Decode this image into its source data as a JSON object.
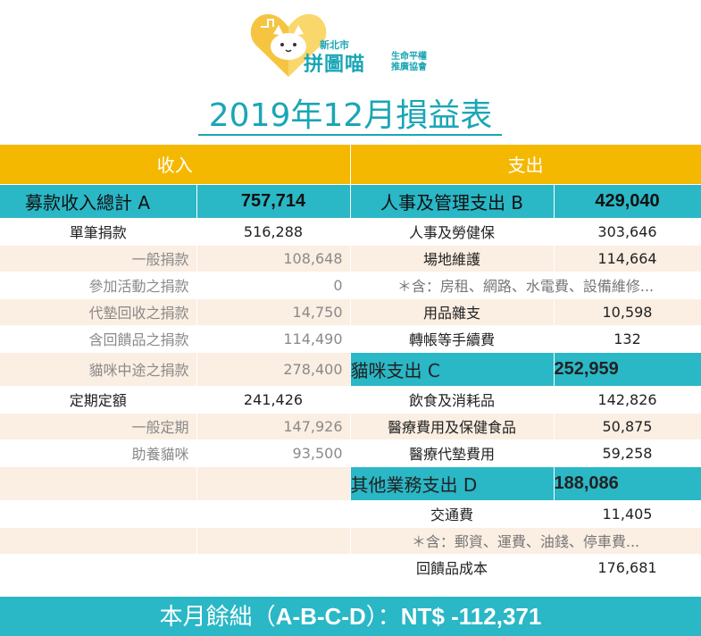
{
  "logo": {
    "city": "新北市",
    "name": "拼圖喵",
    "sub_line1": "生命平權",
    "sub_line2": "推廣協會"
  },
  "title": "2019年12月損益表",
  "header": {
    "income": "收入",
    "expense": "支出"
  },
  "rows": [
    {
      "kind": "cat",
      "l": "募款收入總計 A",
      "lv": "757,714",
      "r": "人事及管理支出 B",
      "rv": "429,040"
    },
    {
      "kind": "w",
      "ls": "main",
      "l": "單筆捐款",
      "lv": "516,288",
      "r": "人事及勞健保",
      "rv": "303,646"
    },
    {
      "kind": "b",
      "ls": "sub",
      "l": "一般捐款",
      "lv": "108,648",
      "r": "場地維護",
      "rv": "114,664"
    },
    {
      "kind": "w",
      "ls": "sub",
      "l": "參加活動之捐款",
      "lv": "0",
      "note": "＊含：房租、網路、水電費、設備維修..."
    },
    {
      "kind": "b",
      "ls": "sub",
      "l": "代墊回收之捐款",
      "lv": "14,750",
      "r": "用品雜支",
      "rv": "10,598"
    },
    {
      "kind": "w",
      "ls": "sub",
      "l": "含回饋品之捐款",
      "lv": "114,490",
      "r": "轉帳等手續費",
      "rv": "132"
    },
    {
      "kind": "b-cat",
      "ls": "sub",
      "l": "貓咪中途之捐款",
      "lv": "278,400",
      "r": "貓咪支出 C",
      "rv": "252,959"
    },
    {
      "kind": "w",
      "ls": "main",
      "l": "定期定額",
      "lv": "241,426",
      "r": "飲食及消耗品",
      "rv": "142,826"
    },
    {
      "kind": "b",
      "ls": "sub",
      "l": "一般定期",
      "lv": "147,926",
      "r": "醫療費用及保健食品",
      "rv": "50,875"
    },
    {
      "kind": "w",
      "ls": "sub",
      "l": "助養貓咪",
      "lv": "93,500",
      "r": "醫療代墊費用",
      "rv": "59,258"
    },
    {
      "kind": "b-cat",
      "ls": "sub",
      "l": "",
      "lv": "",
      "r": "其他業務支出 D",
      "rv": "188,086"
    },
    {
      "kind": "w",
      "ls": "sub",
      "l": "",
      "lv": "",
      "r": "交通費",
      "rv": "11,405"
    },
    {
      "kind": "b",
      "ls": "sub",
      "l": "",
      "lv": "",
      "note": "＊含：郵資、運費、油錢、停車費..."
    },
    {
      "kind": "w",
      "ls": "sub",
      "l": "",
      "lv": "",
      "r": "回饋品成本",
      "rv": "176,681"
    }
  ],
  "footer": {
    "label": "本月餘絀（",
    "formula": "A-B-C-D",
    "close": "）：",
    "total": "NT$ -112,371"
  },
  "colors": {
    "teal": "#2ab7c6",
    "orange": "#f5b800",
    "beige": "#fbeee2",
    "title": "#1aa6b5"
  }
}
